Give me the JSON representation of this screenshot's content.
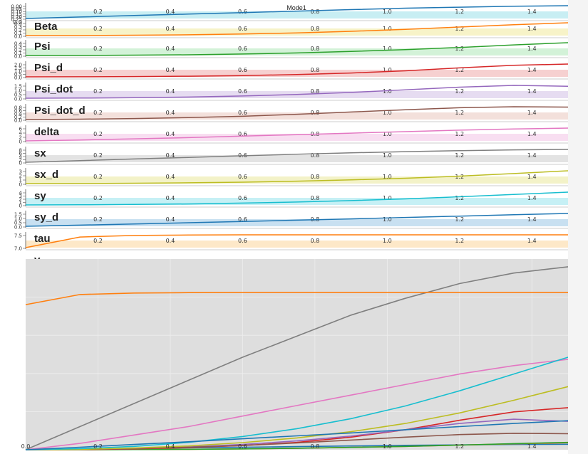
{
  "mode_label": "Mode1",
  "x_tick_labels": [
    "0.2",
    "0.4",
    "0.6",
    "0.8",
    "1.0",
    "1.2",
    "1.4"
  ],
  "origin_label": "0.0",
  "strips": [
    {
      "label": "",
      "color": "#1f77b4",
      "band": "#c8eef3",
      "y_ticks": [
        "0.25",
        "0.20",
        "0.15",
        "0.10",
        "0.05",
        "0.00"
      ]
    },
    {
      "label": "Beta",
      "color": "#ff7f0e",
      "band": "#f7f3c8",
      "y_ticks": [
        "0.0",
        "0.1",
        "0.2",
        "0.3",
        "0.4"
      ]
    },
    {
      "label": "Psi",
      "color": "#2ca02c",
      "band": "#d3f2d8",
      "y_ticks": [
        "0.0",
        "0.1",
        "0.2",
        "0.3",
        "0.4"
      ]
    },
    {
      "label": "Psi_d",
      "color": "#d62728",
      "band": "#f6d0d0",
      "y_ticks": [
        "0.0",
        "0.5",
        "1.0",
        "1.5",
        "2.0"
      ]
    },
    {
      "label": "Psi_dot",
      "color": "#9467bd",
      "band": "#e6dcf1",
      "y_ticks": [
        "0.0",
        "0.5",
        "1.0",
        "1.5"
      ]
    },
    {
      "label": "Psi_dot_d",
      "color": "#8c564b",
      "band": "#f3e0db",
      "y_ticks": [
        "0.0",
        "0.2",
        "0.4",
        "0.6",
        "0.8"
      ]
    },
    {
      "label": "delta",
      "color": "#e377c2",
      "band": "#f8def1",
      "y_ticks": [
        "0",
        "2",
        "4",
        "6"
      ]
    },
    {
      "label": "sx",
      "color": "#7f7f7f",
      "band": "#e3e3e3",
      "y_ticks": [
        "0",
        "2",
        "4",
        "6",
        "8"
      ]
    },
    {
      "label": "sx_d",
      "color": "#bcbd22",
      "band": "#f3f2c8",
      "y_ticks": [
        "0",
        "1",
        "2",
        "3"
      ]
    },
    {
      "label": "sy",
      "color": "#17becf",
      "band": "#c6f0f5",
      "y_ticks": [
        "0",
        "1",
        "2",
        "3",
        "4"
      ]
    },
    {
      "label": "sy_d",
      "color": "#1f77b4",
      "band": "#c8e0f1",
      "y_ticks": [
        "0.0",
        "0.5",
        "1.0",
        "1.5"
      ]
    },
    {
      "label": "tau",
      "color": "#ff7f0e",
      "band": "#fde8c8",
      "y_ticks": [
        "7.0",
        "7.5"
      ]
    },
    {
      "label": "v",
      "color": "#7f7f7f",
      "band": "#dddddd",
      "y_ticks": []
    }
  ],
  "chart_data": {
    "type": "line",
    "x": [
      0.0,
      0.15,
      0.3,
      0.45,
      0.6,
      0.75,
      0.9,
      1.05,
      1.2,
      1.35,
      1.5
    ],
    "xlim": [
      0.0,
      1.5
    ],
    "grid": true,
    "series": [
      {
        "name": "",
        "color": "#1f77b4",
        "values": [
          0.0,
          0.03,
          0.06,
          0.09,
          0.12,
          0.15,
          0.18,
          0.21,
          0.23,
          0.25,
          0.26
        ]
      },
      {
        "name": "Beta",
        "color": "#ff7f0e",
        "values": [
          0.0,
          0.0,
          0.01,
          0.02,
          0.04,
          0.07,
          0.11,
          0.16,
          0.22,
          0.28,
          0.33
        ]
      },
      {
        "name": "Psi",
        "color": "#2ca02c",
        "values": [
          0.0,
          0.0,
          0.01,
          0.02,
          0.04,
          0.07,
          0.11,
          0.16,
          0.22,
          0.29,
          0.35
        ]
      },
      {
        "name": "Psi_d",
        "color": "#d62728",
        "values": [
          0.0,
          0.01,
          0.04,
          0.1,
          0.2,
          0.35,
          0.6,
          0.95,
          1.4,
          1.8,
          2.0
        ]
      },
      {
        "name": "Psi_dot",
        "color": "#9467bd",
        "values": [
          0.0,
          0.02,
          0.06,
          0.13,
          0.25,
          0.42,
          0.65,
          0.95,
          1.25,
          1.45,
          1.35
        ]
      },
      {
        "name": "Psi_dot_d",
        "color": "#8c564b",
        "values": [
          0.0,
          0.02,
          0.06,
          0.12,
          0.2,
          0.32,
          0.46,
          0.6,
          0.72,
          0.78,
          0.76
        ]
      },
      {
        "name": "delta",
        "color": "#e377c2",
        "values": [
          0.0,
          0.3,
          0.7,
          1.1,
          1.6,
          2.1,
          2.6,
          3.1,
          3.6,
          4.0,
          4.3
        ]
      },
      {
        "name": "sx",
        "color": "#7f7f7f",
        "values": [
          0.0,
          1.1,
          2.2,
          3.3,
          4.4,
          5.4,
          6.4,
          7.2,
          7.9,
          8.4,
          8.7
        ]
      },
      {
        "name": "sx_d",
        "color": "#bcbd22",
        "values": [
          0.0,
          0.02,
          0.08,
          0.18,
          0.34,
          0.56,
          0.86,
          1.25,
          1.75,
          2.35,
          3.0
        ]
      },
      {
        "name": "sy",
        "color": "#17becf",
        "values": [
          0.0,
          0.05,
          0.16,
          0.35,
          0.63,
          1.0,
          1.48,
          2.08,
          2.8,
          3.6,
          4.4
        ]
      },
      {
        "name": "sy_d",
        "color": "#1f77b4",
        "values": [
          0.0,
          0.12,
          0.25,
          0.38,
          0.52,
          0.66,
          0.8,
          0.95,
          1.1,
          1.25,
          1.38
        ]
      },
      {
        "name": "tau",
        "color": "#ff7f0e",
        "values": [
          6.9,
          7.38,
          7.45,
          7.47,
          7.48,
          7.48,
          7.48,
          7.48,
          7.48,
          7.48,
          7.48
        ]
      }
    ]
  }
}
